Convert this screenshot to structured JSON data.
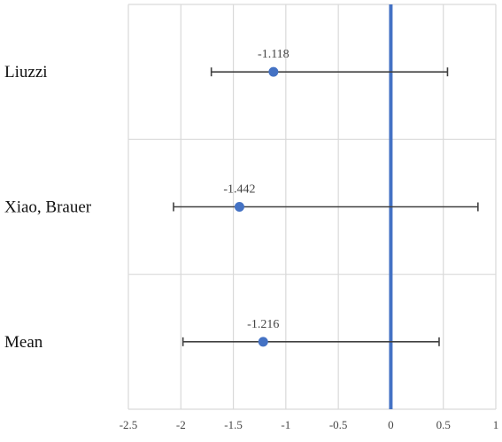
{
  "chart_data": {
    "type": "forest",
    "title": "",
    "xlabel": "",
    "ylabel": "",
    "xlim": [
      -2.5,
      1
    ],
    "x_ticks": [
      -2.5,
      -2,
      -1.5,
      -1,
      -0.5,
      0,
      0.5,
      1
    ],
    "x_tick_labels": [
      "-2.5",
      "-2",
      "-1.5",
      "-1",
      "-0.5",
      "0",
      "0.5",
      "1"
    ],
    "grid": true,
    "reference_line": {
      "x": 0,
      "color": "#4472C4"
    },
    "rows": [
      {
        "label": "Liuzzi",
        "estimate": -1.118,
        "estimate_label": "-1.118",
        "lower": -1.71,
        "upper": 0.54
      },
      {
        "label": "Xiao, Brauer",
        "estimate": -1.442,
        "estimate_label": "-1.442",
        "lower": -2.07,
        "upper": 0.83
      },
      {
        "label": "Mean",
        "estimate": -1.216,
        "estimate_label": "-1.216",
        "lower": -1.98,
        "upper": 0.46
      }
    ],
    "colors": {
      "point": "#4472C4",
      "error_bar": "#404040",
      "grid": "#D9D9D9"
    }
  }
}
